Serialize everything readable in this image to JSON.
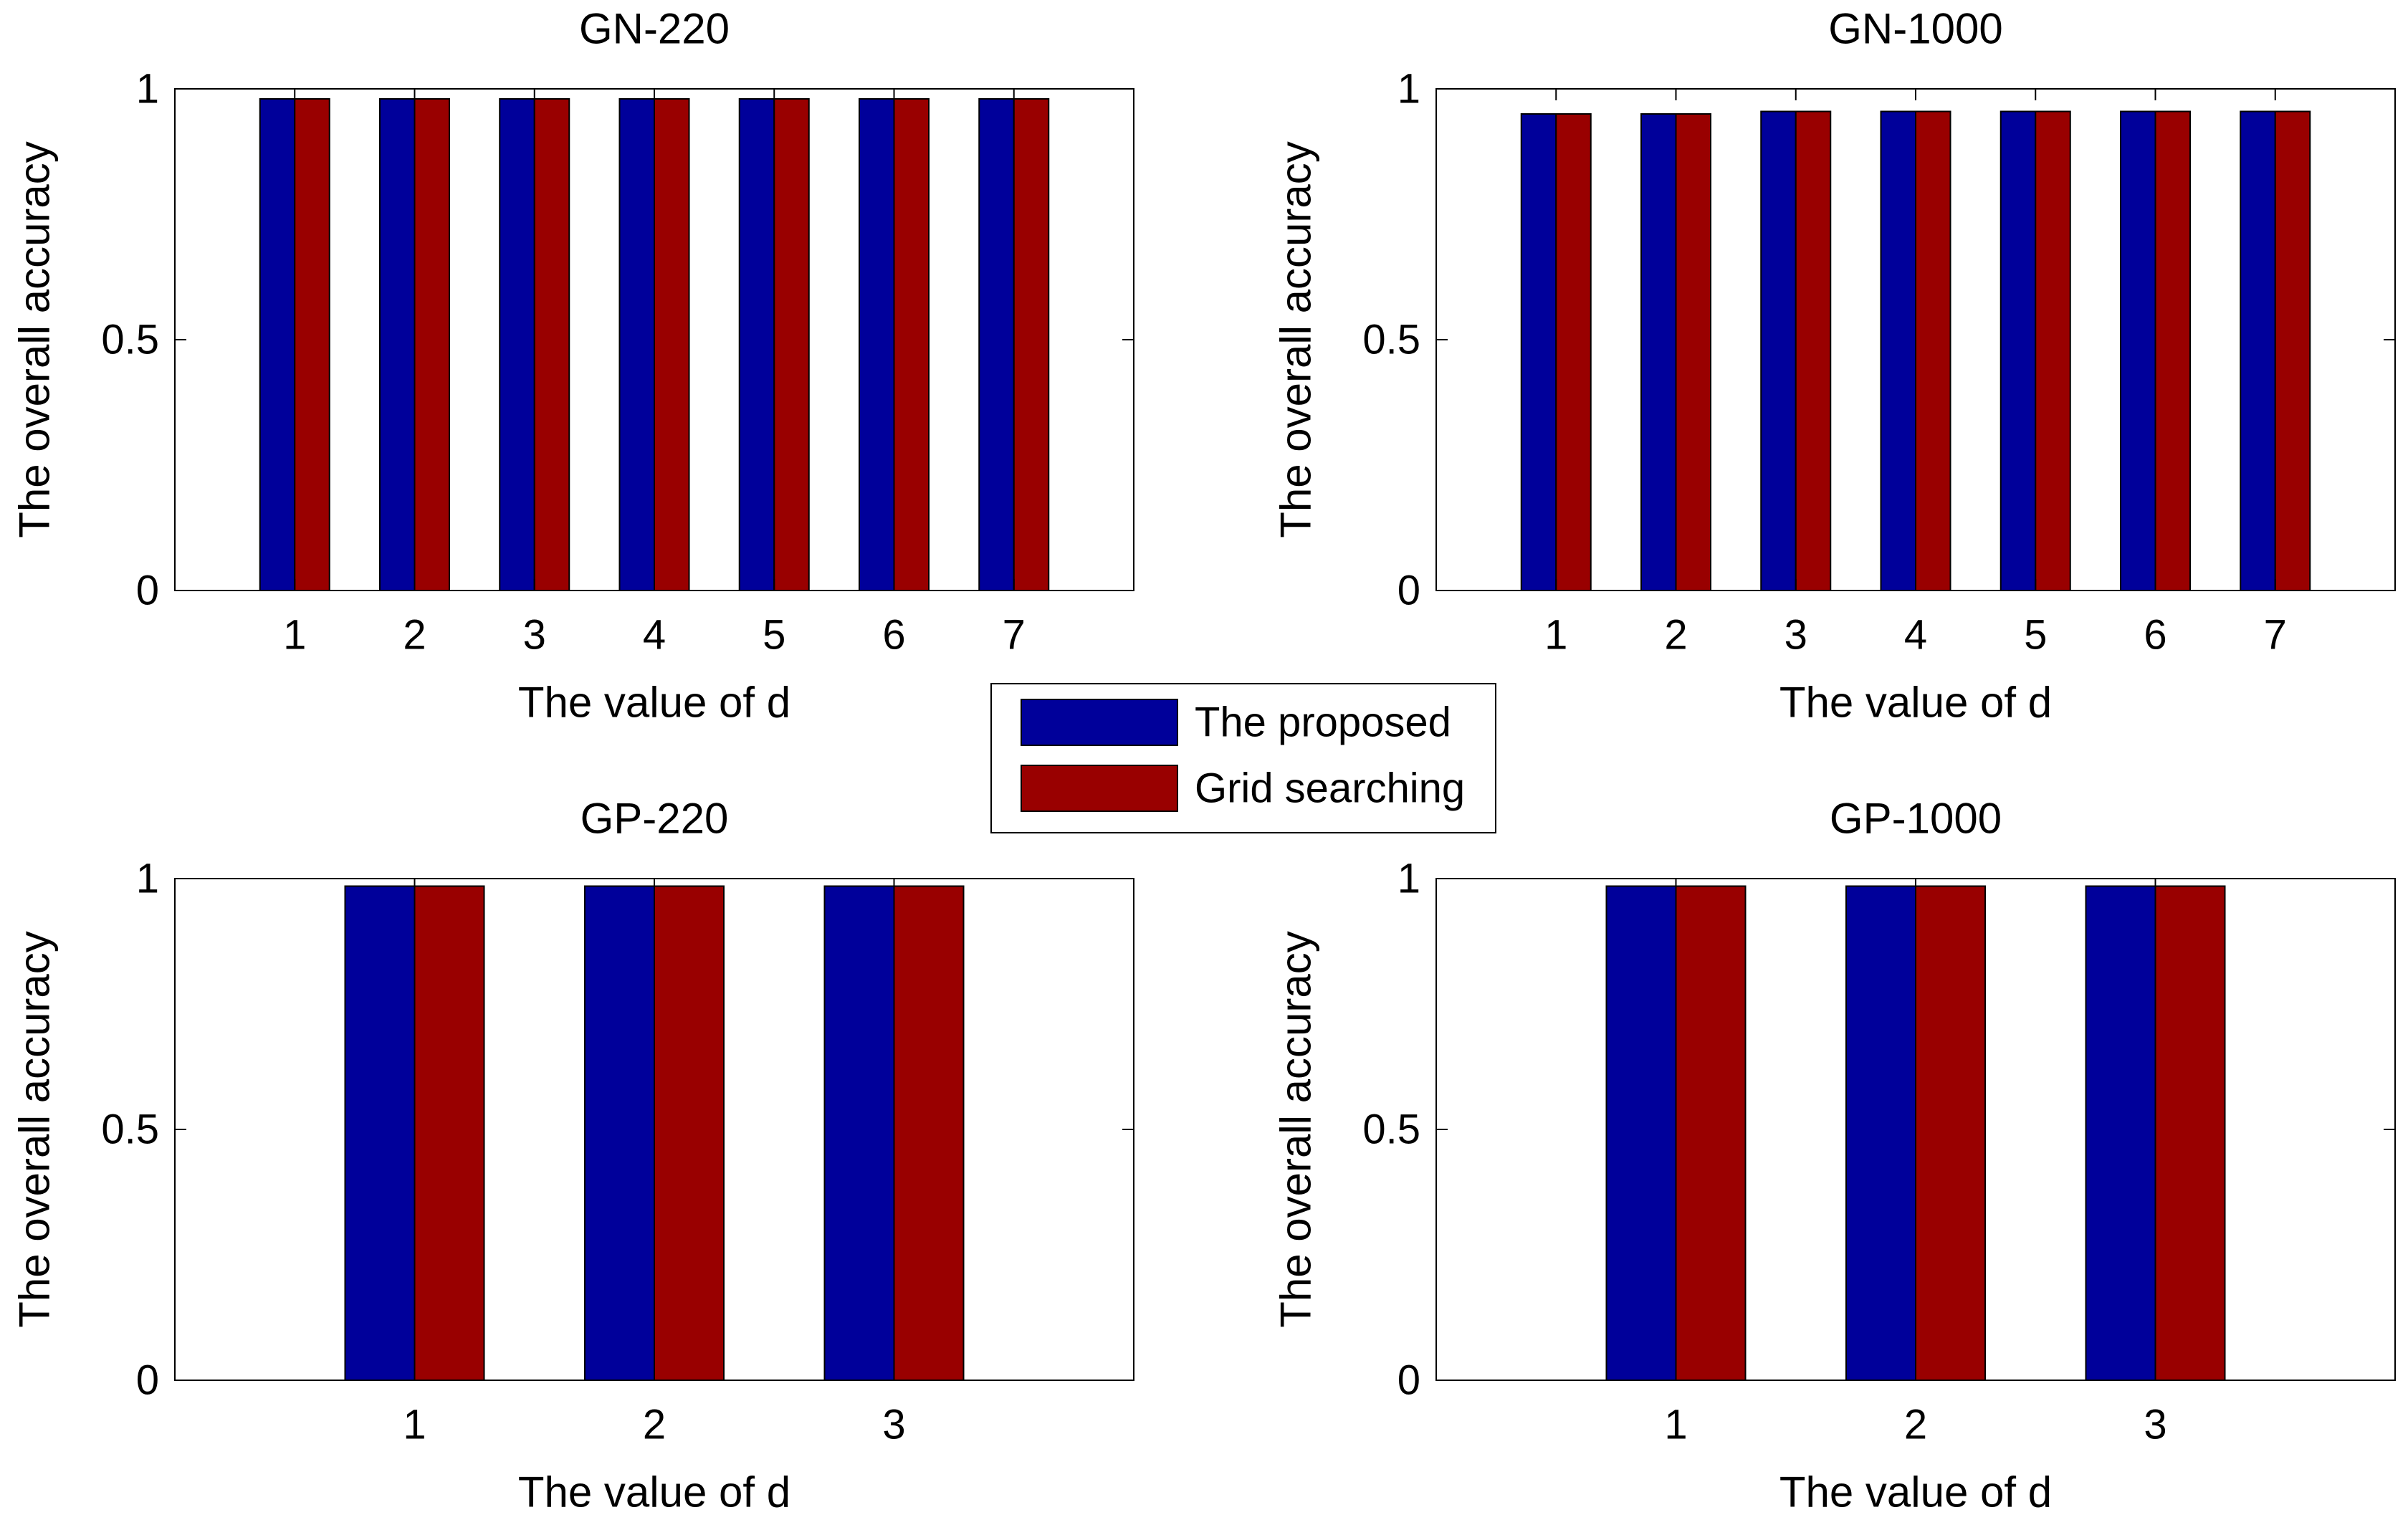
{
  "legend": {
    "entries": [
      "The proposed",
      "Grid searching"
    ]
  },
  "colors": {
    "series_0": "#00009A",
    "series_1": "#990000"
  },
  "chart_data": [
    {
      "type": "bar",
      "title": "GN-220",
      "xlabel": "The value of d",
      "ylabel": "The overall accuracy",
      "categories": [
        "1",
        "2",
        "3",
        "4",
        "5",
        "6",
        "7"
      ],
      "yticks": [
        "0",
        "0.5",
        "1"
      ],
      "ylim": [
        0,
        1
      ],
      "series": [
        {
          "name": "The proposed",
          "values": [
            0.98,
            0.98,
            0.98,
            0.98,
            0.98,
            0.98,
            0.98
          ]
        },
        {
          "name": "Grid searching",
          "values": [
            0.98,
            0.98,
            0.98,
            0.98,
            0.98,
            0.98,
            0.98
          ]
        }
      ]
    },
    {
      "type": "bar",
      "title": "GN-1000",
      "xlabel": "The value of d",
      "ylabel": "The overall accuracy",
      "categories": [
        "1",
        "2",
        "3",
        "4",
        "5",
        "6",
        "7"
      ],
      "yticks": [
        "0",
        "0.5",
        "1"
      ],
      "ylim": [
        0,
        1
      ],
      "series": [
        {
          "name": "The proposed",
          "values": [
            0.95,
            0.95,
            0.955,
            0.955,
            0.955,
            0.955,
            0.955
          ]
        },
        {
          "name": "Grid searching",
          "values": [
            0.95,
            0.95,
            0.955,
            0.955,
            0.955,
            0.955,
            0.955
          ]
        }
      ]
    },
    {
      "type": "bar",
      "title": "GP-220",
      "xlabel": "The value of d",
      "ylabel": "The overall accuracy",
      "categories": [
        "1",
        "2",
        "3"
      ],
      "yticks": [
        "0",
        "0.5",
        "1"
      ],
      "ylim": [
        0,
        1
      ],
      "series": [
        {
          "name": "The proposed",
          "values": [
            0.985,
            0.985,
            0.985
          ]
        },
        {
          "name": "Grid searching",
          "values": [
            0.985,
            0.985,
            0.985
          ]
        }
      ]
    },
    {
      "type": "bar",
      "title": "GP-1000",
      "xlabel": "The value of d",
      "ylabel": "The overall accuracy",
      "categories": [
        "1",
        "2",
        "3"
      ],
      "yticks": [
        "0",
        "0.5",
        "1"
      ],
      "ylim": [
        0,
        1
      ],
      "series": [
        {
          "name": "The proposed",
          "values": [
            0.985,
            0.985,
            0.985
          ]
        },
        {
          "name": "Grid searching",
          "values": [
            0.985,
            0.985,
            0.985
          ]
        }
      ]
    }
  ]
}
